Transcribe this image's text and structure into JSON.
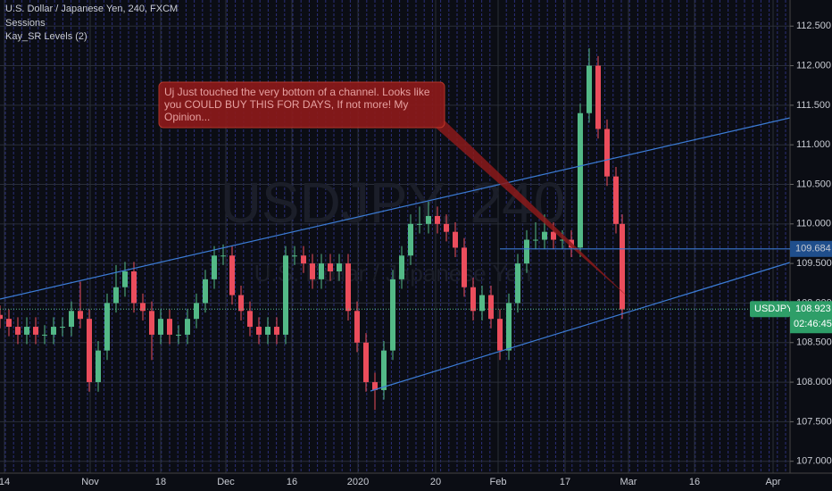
{
  "chart_data": {
    "type": "candlestick",
    "title": "U.S. Dollar / Japanese Yen, 240, FXCM",
    "indicators": [
      "Sessions",
      "Kay_SR Levels (2)"
    ],
    "watermark": "USDJPY, 240",
    "watermark_subtitle": "U.S. Dollar / Japanese Yen",
    "annotation": "Uj Just touched the very bottom of a channel. Looks like you COULD BUY THIS FOR DAYS, If not more! My Opinion...",
    "symbol": "USDJPY",
    "last_price": 108.923,
    "countdown": "02:46:45",
    "level": 109.684,
    "up_color": "#53b987",
    "down_color": "#eb4d5c",
    "grid": true,
    "xlim": [
      0,
      177
    ],
    "xticks": [
      {
        "value": 1,
        "label": "14"
      },
      {
        "value": 20.2,
        "label": "Nov"
      },
      {
        "value": 36,
        "label": "18"
      },
      {
        "value": 50.6,
        "label": "Dec"
      },
      {
        "value": 65.4,
        "label": "16"
      },
      {
        "value": 80.2,
        "label": "2020"
      },
      {
        "value": 97.6,
        "label": "20"
      },
      {
        "value": 111.6,
        "label": "Feb"
      },
      {
        "value": 126.6,
        "label": "17"
      },
      {
        "value": 140.8,
        "label": "Mar"
      },
      {
        "value": 155.6,
        "label": "16"
      },
      {
        "value": 173.2,
        "label": "Apr"
      }
    ],
    "ylim": [
      106.85,
      112.83
    ],
    "yticks": [
      {
        "value": 107,
        "label": "107.000"
      },
      {
        "value": 107.5,
        "label": "107.500"
      },
      {
        "value": 108,
        "label": "108.000"
      },
      {
        "value": 108.5,
        "label": "108.500"
      },
      {
        "value": 109,
        "label": "109.000"
      },
      {
        "value": 109.5,
        "label": "109.500"
      },
      {
        "value": 110,
        "label": "110.000"
      },
      {
        "value": 110.5,
        "label": "110.500"
      },
      {
        "value": 111,
        "label": "111.000"
      },
      {
        "value": 111.5,
        "label": "111.500"
      },
      {
        "value": 112,
        "label": "112.000"
      },
      {
        "value": 112.5,
        "label": "112.500"
      }
    ],
    "x": [
      0,
      2,
      4,
      6,
      8,
      10,
      12,
      14,
      16,
      18,
      20,
      22,
      24,
      26,
      28,
      30,
      32,
      34,
      36,
      38,
      40,
      42,
      44,
      46,
      48,
      50,
      52,
      54,
      56,
      58,
      60,
      62,
      64,
      66,
      68,
      70,
      72,
      74,
      76,
      78,
      80,
      82,
      84,
      86,
      88,
      90,
      92,
      94,
      96,
      98,
      100,
      102,
      104,
      106,
      108,
      110,
      112,
      114,
      116,
      118,
      120,
      122,
      124,
      126,
      128,
      130,
      132,
      134,
      136,
      138,
      139.4
    ],
    "open": [
      108.85,
      108.8,
      108.7,
      108.6,
      108.7,
      108.6,
      108.6,
      108.7,
      108.7,
      108.9,
      108.8,
      108.0,
      108.4,
      109.0,
      109.2,
      109.4,
      109.0,
      108.9,
      108.6,
      108.8,
      108.6,
      108.6,
      108.8,
      109.0,
      109.3,
      109.6,
      109.6,
      109.1,
      108.9,
      108.7,
      108.6,
      108.7,
      108.6,
      109.6,
      109.6,
      109.5,
      109.3,
      109.5,
      109.4,
      109.5,
      108.9,
      108.5,
      108.0,
      107.9,
      108.4,
      109.3,
      109.6,
      110.0,
      110.0,
      110.1,
      110.0,
      109.9,
      109.7,
      109.2,
      108.9,
      109.1,
      108.8,
      108.4,
      109.0,
      109.5,
      109.8,
      109.8,
      109.9,
      109.8,
      109.8,
      109.7,
      111.4,
      112.0,
      111.2,
      110.6,
      110.0
    ],
    "high": [
      108.97,
      108.92,
      108.82,
      108.82,
      108.82,
      108.72,
      108.82,
      108.82,
      109.02,
      109.27,
      108.92,
      108.52,
      109.12,
      109.48,
      109.52,
      109.52,
      109.12,
      109.02,
      108.92,
      108.92,
      108.72,
      108.92,
      109.12,
      109.42,
      109.72,
      109.74,
      109.72,
      109.22,
      109.02,
      108.82,
      108.82,
      108.82,
      109.72,
      109.72,
      109.72,
      109.62,
      109.62,
      109.62,
      109.62,
      109.62,
      109.02,
      108.62,
      108.12,
      108.52,
      109.42,
      109.72,
      110.12,
      110.22,
      110.28,
      110.22,
      110.12,
      110.02,
      109.82,
      109.32,
      109.22,
      109.22,
      108.92,
      109.12,
      109.62,
      109.92,
      110.02,
      110.12,
      110.02,
      109.92,
      109.92,
      111.52,
      112.22,
      112.12,
      111.32,
      110.72,
      110.12
    ],
    "low": [
      108.68,
      108.58,
      108.48,
      108.48,
      108.48,
      108.48,
      108.48,
      108.58,
      108.58,
      108.68,
      107.88,
      107.88,
      108.28,
      108.88,
      109.08,
      108.88,
      108.78,
      108.28,
      108.48,
      108.48,
      108.48,
      108.48,
      108.68,
      108.88,
      109.18,
      109.48,
      108.98,
      108.78,
      108.58,
      108.48,
      108.48,
      108.48,
      108.48,
      109.48,
      109.38,
      109.18,
      109.18,
      109.28,
      109.28,
      108.78,
      108.38,
      107.88,
      107.65,
      107.78,
      108.28,
      109.18,
      109.48,
      109.88,
      109.88,
      109.88,
      109.78,
      109.58,
      109.08,
      108.78,
      108.78,
      108.68,
      108.28,
      108.28,
      108.88,
      109.38,
      109.68,
      109.68,
      109.68,
      109.68,
      109.58,
      109.58,
      111.28,
      111.08,
      110.48,
      109.88,
      108.8
    ],
    "close": [
      108.8,
      108.7,
      108.6,
      108.7,
      108.6,
      108.6,
      108.7,
      108.7,
      108.9,
      108.8,
      108.0,
      108.4,
      109.0,
      109.2,
      109.4,
      109.0,
      108.9,
      108.6,
      108.8,
      108.6,
      108.6,
      108.8,
      109.0,
      109.3,
      109.6,
      109.6,
      109.1,
      108.9,
      108.7,
      108.6,
      108.7,
      108.6,
      109.6,
      109.6,
      109.5,
      109.3,
      109.5,
      109.4,
      109.5,
      108.9,
      108.5,
      108.0,
      107.9,
      108.4,
      109.3,
      109.6,
      110.0,
      110.0,
      110.1,
      110.0,
      109.9,
      109.7,
      109.2,
      108.9,
      109.1,
      108.8,
      108.4,
      109.0,
      109.5,
      109.8,
      109.8,
      109.9,
      109.8,
      109.8,
      109.7,
      111.4,
      112.0,
      111.2,
      110.6,
      110.0,
      108.92
    ]
  }
}
